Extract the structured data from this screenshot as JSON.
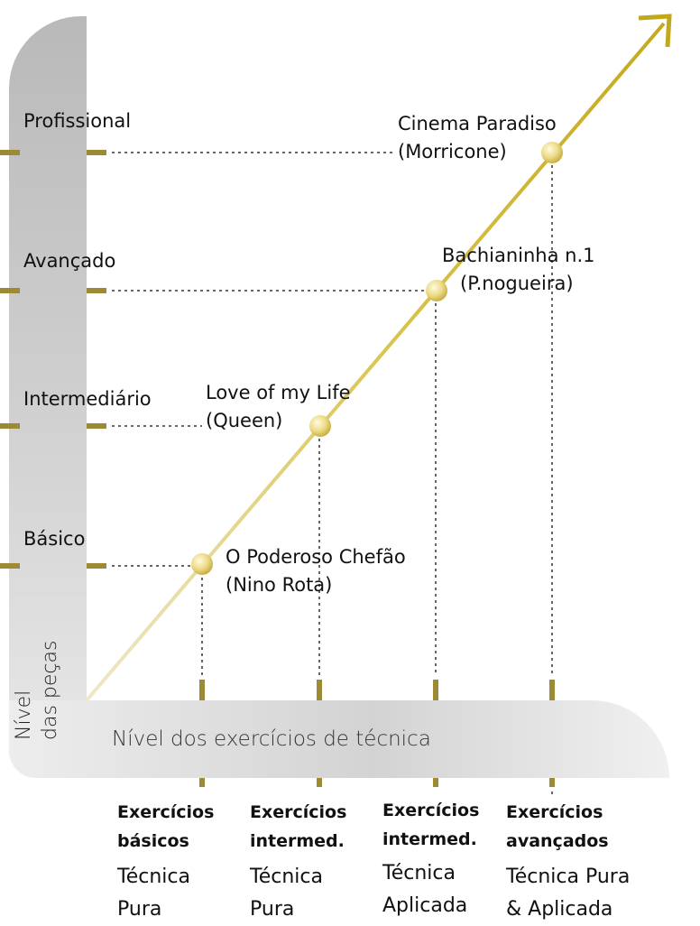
{
  "y_axis": {
    "title_line1": "Nível",
    "title_line2": "das peças",
    "levels": [
      "Profissional",
      "Avançado",
      "Intermediário",
      "Básico"
    ]
  },
  "x_axis": {
    "title": "Nível dos exercícios de técnica",
    "columns": [
      {
        "heading_line1": "Exercícios",
        "heading_line2": "básicos",
        "sub_line1": "Técnica",
        "sub_line2": "Pura"
      },
      {
        "heading_line1": "Exercícios",
        "heading_line2": "intermed.",
        "sub_line1": "Técnica",
        "sub_line2": "Pura"
      },
      {
        "heading_line1": "Exercícios",
        "heading_line2": "intermed.",
        "sub_line1": "Técnica",
        "sub_line2": "Aplicada"
      },
      {
        "heading_line1": "Exercícios",
        "heading_line2": "avançados",
        "sub_line1": "Técnica Pura",
        "sub_line2": "& Aplicada"
      }
    ]
  },
  "pieces": [
    {
      "title": "O Poderoso Chefão",
      "composer": "(Nino Rota)"
    },
    {
      "title": "Love of my Life",
      "composer": "(Queen)"
    },
    {
      "title": "Bachianinha n.1",
      "composer": "(P.nogueira)"
    },
    {
      "title": "Cinema Paradiso",
      "composer": "(Morricone)"
    }
  ],
  "colors": {
    "accent": "#c9ad2a",
    "tick": "#9c8b35"
  }
}
